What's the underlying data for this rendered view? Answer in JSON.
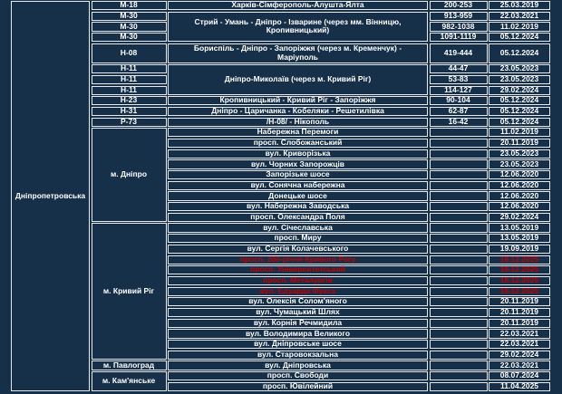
{
  "table": {
    "region": "Дніпропетровська",
    "colors": {
      "background": "#16304a",
      "grid_border": "#e7e9ec",
      "text": "#ffffff",
      "alert_text": "#c10000"
    },
    "road_rows": [
      {
        "code": "М-18",
        "route": "Харків-Сімферополь-Алушта-Ялта",
        "km": "200-253",
        "date": "25.03.2019"
      },
      {
        "code": "М-30",
        "route": "Стрий - Умань - Дніпро - Ізварине (через мм. Вінницю, Кропивницький)",
        "route_rowspan": 3,
        "km": "913-959",
        "date": "22.03.2021"
      },
      {
        "code": "М-30",
        "km": "982-1038",
        "date": "11.02.2019"
      },
      {
        "code": "М-30",
        "km": "1091-1119",
        "date": "05.12.2024"
      },
      {
        "code": "Н-08",
        "route": "Бориспіль - Дніпро - Запоріжжя (через м. Кременчук) - Маріуполь",
        "km": "419-444",
        "date": "05.12.2024",
        "tall": true
      },
      {
        "code": "Н-11",
        "route": "Дніпро-Миколаїв (через м. Кривий Ріг)",
        "route_rowspan": 3,
        "km": "44-47",
        "date": "23.05.2023"
      },
      {
        "code": "Н-11",
        "km": "53-83",
        "date": "23.05.2023"
      },
      {
        "code": "Н-11",
        "km": "114-127",
        "date": "29.02.2024"
      },
      {
        "code": "Н-23",
        "route": "Кропивницький - Кривий Ріг - Запоріжжя",
        "km": "90-104",
        "date": "05.12.2024"
      },
      {
        "code": "Н-31",
        "route": "Дніпро - Царичанка - Кобеляки - Решетилівка",
        "km": "62-87",
        "date": "05.12.2024"
      },
      {
        "code": "Р-73",
        "route": "/Н-08/ - Нікополь",
        "km": "16-42",
        "date": "05.12.2024"
      }
    ],
    "city_groups": [
      {
        "city": "м. Дніпро",
        "rows": [
          {
            "street": "Набережна Перемоги",
            "date": "11.02.2019"
          },
          {
            "street": "просп. Слобожанський",
            "date": "20.11.2019"
          },
          {
            "street": "вул. Криворізька",
            "date": "23.05.2023"
          },
          {
            "street": "вул. Чорних Запорожців",
            "date": "23.05.2023"
          },
          {
            "street": "Запорізьке шосе",
            "date": "12.06.2020"
          },
          {
            "street": "вул. Сонячна набережна",
            "date": "12.06.2020"
          },
          {
            "street": "Донецьке шосе",
            "date": "12.06.2020"
          },
          {
            "street": "вул. Набережна Заводська",
            "date": "12.06.2020"
          },
          {
            "street": "просп. Олександра Поля",
            "date": "29.02.2024"
          }
        ]
      },
      {
        "city": "м. Кривий Ріг",
        "rows": [
          {
            "street": "вул. Січеславська",
            "date": "13.05.2019"
          },
          {
            "street": "просп. Миру",
            "date": "13.05.2019"
          },
          {
            "street": "вул. Сергія Колачевського",
            "date": "19.09.2019"
          },
          {
            "street": "просп. 200-річчя Кривого Рогу",
            "date": "18.12.2025",
            "alert": true
          },
          {
            "street": "просп. Університетський",
            "date": "18.12.2025",
            "alert": true
          },
          {
            "street": "просп. Металургів",
            "date": "18.12.2025",
            "alert": true
          },
          {
            "street": "вул. Едуарда Фукса",
            "date": "18.12.2025",
            "alert": true
          },
          {
            "street": "вул. Олексія Солом'яного",
            "date": "20.11.2019"
          },
          {
            "street": "вул. Чумацький Шлях",
            "date": "20.11.2019"
          },
          {
            "street": "вул. Корнія Речмидила",
            "date": "20.11.2019"
          },
          {
            "street": "вул. Володимира Великого",
            "date": "22.03.2021"
          },
          {
            "street": "вул. Дніпровське шосе",
            "date": "22.03.2021"
          },
          {
            "street": "вул. Старовокзальна",
            "date": "29.02.2024"
          }
        ]
      },
      {
        "city": "м. Павлоград",
        "rows": [
          {
            "street": "вул. Дніпровська",
            "date": "22.03.2021"
          }
        ]
      },
      {
        "city": "м. Кам'янське",
        "rows": [
          {
            "street": "просп. Свободи",
            "date": "08.07.2024"
          },
          {
            "street": "просп. Ювілейний",
            "date": "11.04.2025"
          }
        ]
      }
    ]
  }
}
